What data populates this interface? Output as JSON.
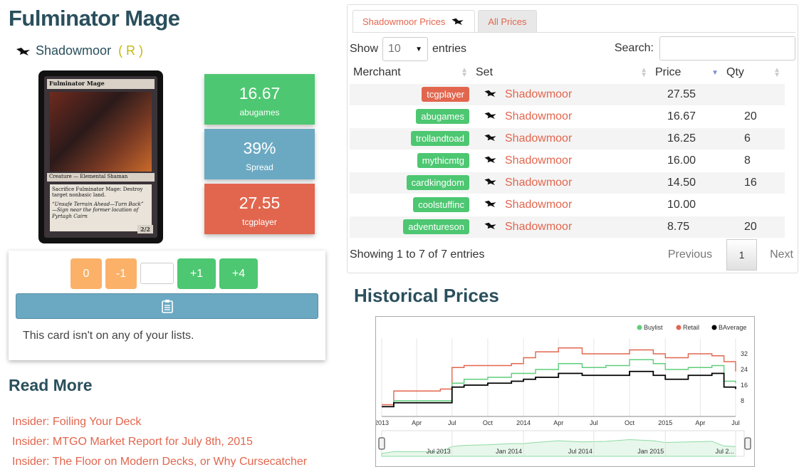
{
  "card": {
    "title": "Fulminator Mage",
    "set": "Shadowmoor",
    "rarity": "( R )",
    "image": {
      "name": "Fulminator Mage",
      "type_line": "Creature — Elemental Shaman",
      "rules_text": "Sacrifice Fulminator Mage: Destroy target nonbasic land.",
      "flavor_text": "“Unsafe Terrain Ahead—Turn Back” —Sign near the former location of Pyrtagh Cairn",
      "pt": "2/2"
    }
  },
  "price_boxes": [
    {
      "value": "16.67",
      "label": "abugames",
      "color": "#4dc771"
    },
    {
      "value": "39%",
      "label": "Spread",
      "color": "#6ba9c2"
    },
    {
      "value": "27.55",
      "label": "tcgplayer",
      "color": "#e2664e"
    }
  ],
  "actions": {
    "minus_all": "0",
    "minus_one": "-1",
    "qty_value": "",
    "plus_one": "+1",
    "plus_four": "+4",
    "note": "This card isn't on any of your lists."
  },
  "read_more": {
    "title": "Read More",
    "links": [
      "Insider: Foiling Your Deck",
      "Insider: MTGO Market Report for July 8th, 2015",
      "Insider: The Floor on Modern Decks, or Why Cursecatcher"
    ]
  },
  "prices_panel": {
    "tabs": [
      {
        "label": "Shadowmoor Prices",
        "active": true
      },
      {
        "label": "All Prices",
        "active": false
      }
    ],
    "show_label": "Show",
    "entries_value": "10",
    "entries_label": "entries",
    "search_label": "Search:",
    "search_value": "",
    "columns": [
      "Merchant",
      "Set",
      "Price",
      "Qty"
    ],
    "rows": [
      {
        "merchant": "tcgplayer",
        "color": "red",
        "set": "Shadowmoor",
        "price": "27.55",
        "qty": ""
      },
      {
        "merchant": "abugames",
        "color": "green",
        "set": "Shadowmoor",
        "price": "16.67",
        "qty": "20"
      },
      {
        "merchant": "trollandtoad",
        "color": "green",
        "set": "Shadowmoor",
        "price": "16.25",
        "qty": "6"
      },
      {
        "merchant": "mythicmtg",
        "color": "green",
        "set": "Shadowmoor",
        "price": "16.00",
        "qty": "8"
      },
      {
        "merchant": "cardkingdom",
        "color": "green",
        "set": "Shadowmoor",
        "price": "14.50",
        "qty": "16"
      },
      {
        "merchant": "coolstuffinc",
        "color": "green",
        "set": "Shadowmoor",
        "price": "10.00",
        "qty": ""
      },
      {
        "merchant": "adventureson",
        "color": "green",
        "set": "Shadowmoor",
        "price": "8.75",
        "qty": "20"
      }
    ],
    "info": "Showing 1 to 7 of 7 entries",
    "prev": "Previous",
    "page": "1",
    "next": "Next"
  },
  "historical": {
    "title": "Historical Prices"
  },
  "chart_data": {
    "type": "line",
    "legend": [
      "Buylist",
      "Retail",
      "BAverage"
    ],
    "legend_position": "top-right",
    "colors": {
      "Buylist": "#5fce7c",
      "Retail": "#e2664e",
      "BAverage": "#000000"
    },
    "x_ticks": [
      "2013",
      "Apr",
      "Jul",
      "Oct",
      "2014",
      "Apr",
      "Jul",
      "Oct",
      "2015",
      "Apr",
      "Jul"
    ],
    "y_ticks": [
      8,
      16,
      24,
      32
    ],
    "ylim": [
      0,
      40
    ],
    "navigator_ticks": [
      "Jul 2013",
      "Jan 2014",
      "Jul 2014",
      "Jan 2015",
      "Jul 2..."
    ],
    "series": [
      {
        "name": "Retail",
        "x": [
          "2013-01",
          "2013-02",
          "2013-06",
          "2013-07",
          "2013-08",
          "2013-10",
          "2013-12",
          "2014-01",
          "2014-02",
          "2014-04",
          "2014-06",
          "2014-08",
          "2014-10",
          "2014-12",
          "2015-01",
          "2015-03",
          "2015-05",
          "2015-06",
          "2015-07"
        ],
        "values": [
          6,
          13,
          14,
          25,
          26,
          26,
          27,
          30,
          33,
          35,
          32,
          32,
          34,
          32,
          30,
          32,
          31,
          28,
          23
        ]
      },
      {
        "name": "Buylist",
        "x": [
          "2013-01",
          "2013-02",
          "2013-06",
          "2013-07",
          "2013-08",
          "2013-10",
          "2013-12",
          "2014-01",
          "2014-02",
          "2014-04",
          "2014-06",
          "2014-08",
          "2014-10",
          "2014-12",
          "2015-01",
          "2015-03",
          "2015-05",
          "2015-06",
          "2015-07"
        ],
        "values": [
          5,
          8,
          8,
          17,
          19,
          20,
          22,
          22,
          24,
          27,
          25,
          26,
          29,
          27,
          24,
          25,
          26,
          18,
          17
        ]
      },
      {
        "name": "BAverage",
        "x": [
          "2013-01",
          "2013-02",
          "2013-06",
          "2013-07",
          "2013-08",
          "2013-10",
          "2013-12",
          "2014-01",
          "2014-02",
          "2014-04",
          "2014-06",
          "2014-08",
          "2014-10",
          "2014-12",
          "2015-01",
          "2015-03",
          "2015-05",
          "2015-06",
          "2015-07"
        ],
        "values": [
          5,
          7,
          7,
          15,
          16,
          17,
          18,
          19,
          20,
          22,
          21,
          21,
          23,
          21,
          19,
          21,
          22,
          15,
          14
        ]
      }
    ]
  }
}
